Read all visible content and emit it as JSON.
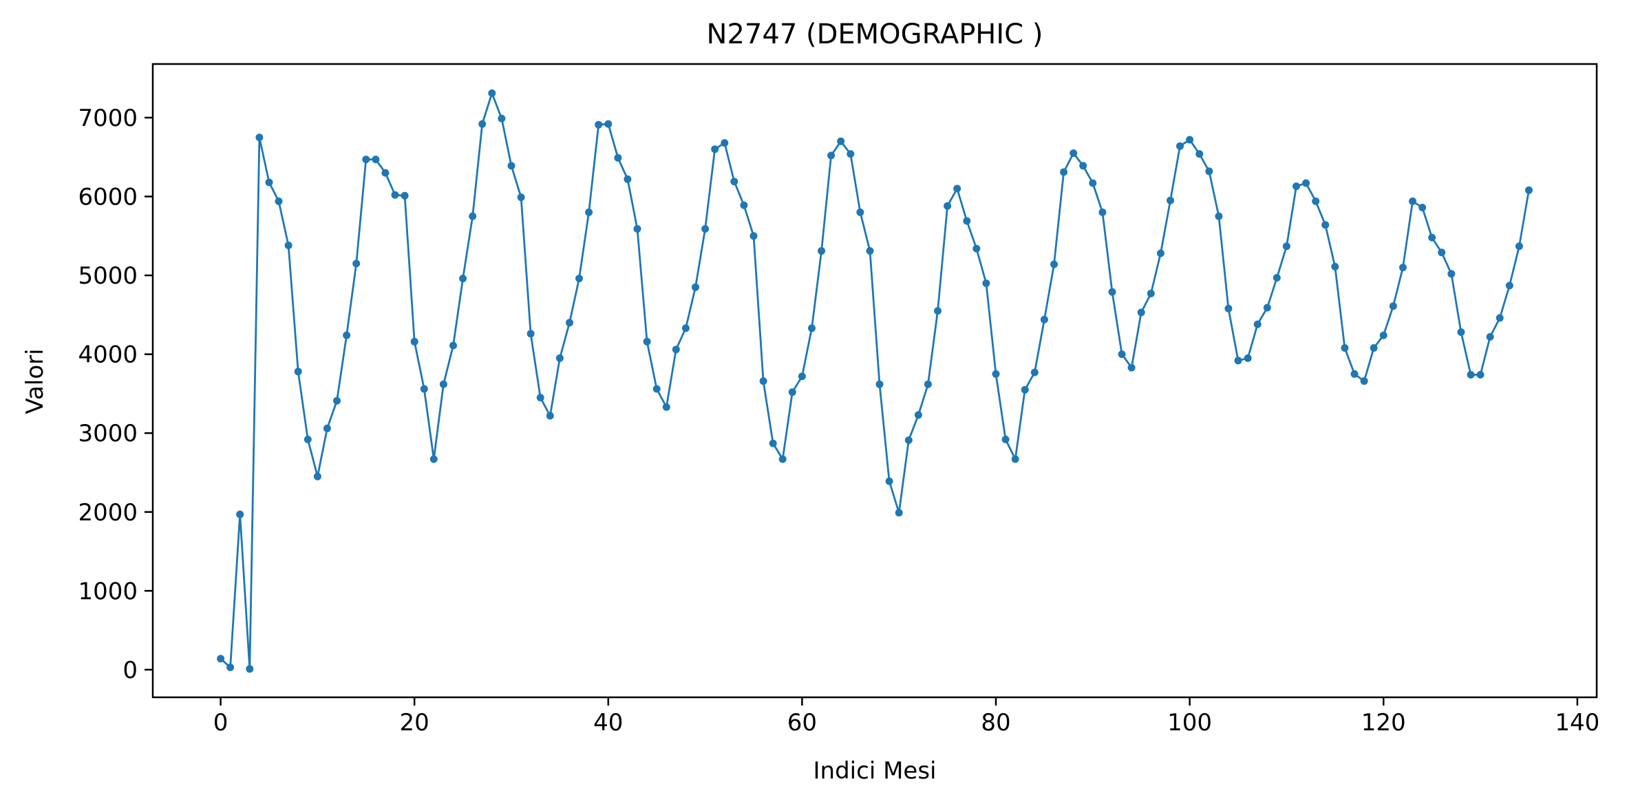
{
  "chart_data": {
    "type": "line",
    "title": "N2747 (DEMOGRAPHIC )",
    "xlabel": "Indici Mesi",
    "ylabel": "Valori",
    "xlim": [
      -7,
      142
    ],
    "ylim": [
      -350,
      7680
    ],
    "xticks": [
      0,
      20,
      40,
      60,
      80,
      100,
      120,
      140
    ],
    "yticks": [
      0,
      1000,
      2000,
      3000,
      4000,
      5000,
      6000,
      7000
    ],
    "grid": false,
    "series": [
      {
        "color": "#1f77b4",
        "marker": "circle",
        "x_start": 0,
        "values": [
          140,
          30,
          1970,
          10,
          6750,
          6180,
          5940,
          5380,
          3780,
          2920,
          2450,
          3060,
          3410,
          4240,
          5150,
          6470,
          6470,
          6300,
          6020,
          6010,
          4160,
          3560,
          2670,
          3620,
          4110,
          4960,
          5750,
          6920,
          7310,
          6990,
          6390,
          5990,
          4260,
          3450,
          3220,
          3950,
          4400,
          4960,
          5800,
          6910,
          6920,
          6490,
          6220,
          5590,
          4160,
          3560,
          3330,
          4060,
          4330,
          4850,
          5590,
          6600,
          6680,
          6190,
          5890,
          5500,
          3660,
          2870,
          2670,
          3520,
          3720,
          4330,
          5310,
          6520,
          6700,
          6540,
          5800,
          5310,
          3620,
          2390,
          1990,
          2910,
          3230,
          3620,
          4550,
          5880,
          6100,
          5690,
          5340,
          4900,
          3750,
          2920,
          2670,
          3550,
          3770,
          4440,
          5140,
          6310,
          6550,
          6390,
          6170,
          5800,
          4790,
          4000,
          3830,
          4530,
          4770,
          5280,
          5950,
          6640,
          6720,
          6540,
          6320,
          5750,
          4580,
          3920,
          3950,
          4380,
          4590,
          4970,
          5370,
          6130,
          6170,
          5940,
          5640,
          5110,
          4080,
          3750,
          3660,
          4080,
          4240,
          4610,
          5100,
          5940,
          5860,
          5480,
          5290,
          5020,
          4280,
          3740,
          3740,
          4220,
          4460,
          4870,
          5370,
          6080
        ]
      }
    ]
  }
}
